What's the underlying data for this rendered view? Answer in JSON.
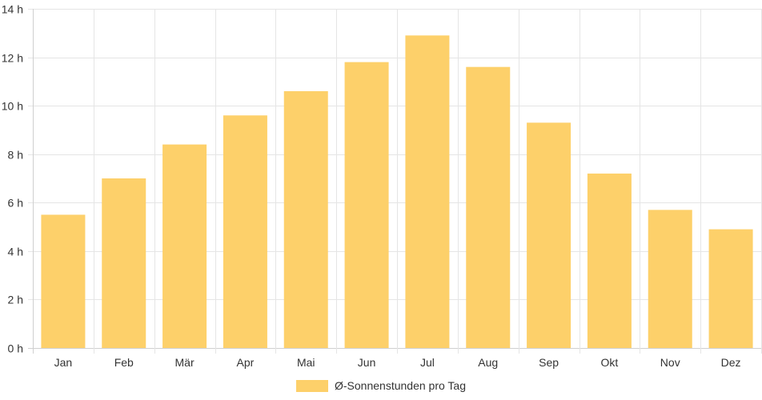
{
  "chart_data": {
    "type": "bar",
    "categories": [
      "Jan",
      "Feb",
      "Mär",
      "Apr",
      "Mai",
      "Jun",
      "Jul",
      "Aug",
      "Sep",
      "Okt",
      "Nov",
      "Dez"
    ],
    "series": [
      {
        "name": "Ø-Sonnenstunden pro Tag",
        "values": [
          5.5,
          7.0,
          8.4,
          9.6,
          10.6,
          11.8,
          12.9,
          11.6,
          9.3,
          7.2,
          5.7,
          4.9
        ],
        "color": "#fdd06a"
      }
    ],
    "ylim": [
      0,
      14
    ],
    "yticks": [
      0,
      2,
      4,
      6,
      8,
      10,
      12,
      14
    ],
    "ytick_labels": [
      "0 h",
      "2 h",
      "4 h",
      "6 h",
      "8 h",
      "10 h",
      "12 h",
      "14 h"
    ],
    "grid": true,
    "legend_position": "bottom-center"
  }
}
